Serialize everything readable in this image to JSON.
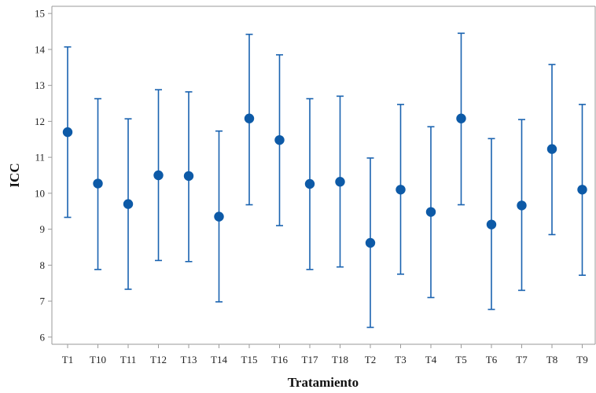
{
  "chart_data": {
    "type": "scatter",
    "xlabel": "Tratamiento",
    "ylabel": "ICC",
    "ylim": [
      5.8,
      15.2
    ],
    "yticks": [
      6,
      7,
      8,
      9,
      10,
      11,
      12,
      13,
      14,
      15
    ],
    "categories": [
      "T1",
      "T10",
      "T11",
      "T12",
      "T13",
      "T14",
      "T15",
      "T16",
      "T17",
      "T18",
      "T2",
      "T3",
      "T4",
      "T5",
      "T6",
      "T7",
      "T8",
      "T9"
    ],
    "series": [
      {
        "values": [
          11.7,
          10.27,
          9.7,
          10.5,
          10.48,
          9.35,
          12.08,
          11.48,
          10.26,
          10.32,
          8.62,
          10.1,
          9.48,
          12.08,
          9.13,
          9.66,
          11.23,
          10.1
        ],
        "lower": [
          9.33,
          7.88,
          7.33,
          8.13,
          8.1,
          6.98,
          9.68,
          9.1,
          7.88,
          7.95,
          6.27,
          7.75,
          7.1,
          9.68,
          6.77,
          7.3,
          8.85,
          7.72
        ],
        "upper": [
          14.07,
          12.63,
          12.07,
          12.88,
          12.82,
          11.73,
          14.42,
          13.85,
          12.63,
          12.7,
          10.98,
          12.47,
          11.85,
          14.45,
          11.52,
          12.05,
          13.58,
          12.47
        ]
      }
    ],
    "grid": false,
    "marker_color": "#0d5aa7",
    "line_color": "#1a63b0"
  }
}
